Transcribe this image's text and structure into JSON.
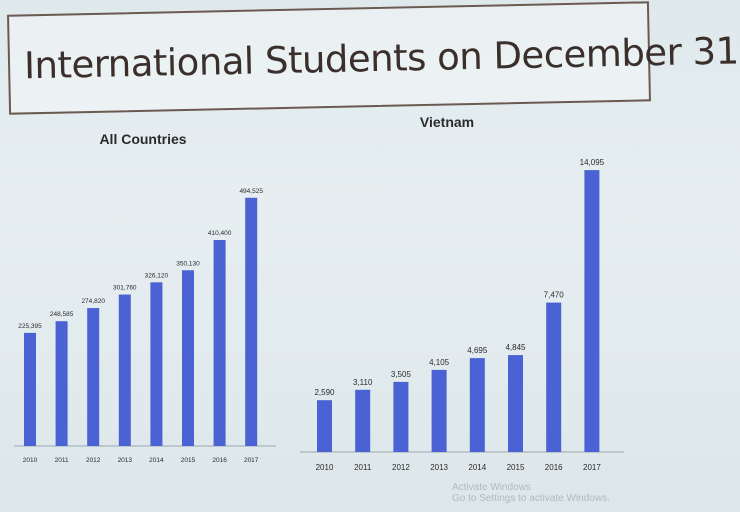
{
  "slide": {
    "title": "International Students on December 31"
  },
  "watermark": {
    "line1": "Activate Windows",
    "line2": "Go to Settings to activate Windows."
  },
  "colors": {
    "bar": "#4a62d4",
    "text": "#2b2b2b",
    "axis": "#9aa6b0"
  },
  "chart_data": [
    {
      "type": "bar",
      "title": "All Countries",
      "categories": [
        "2010",
        "2011",
        "2012",
        "2013",
        "2014",
        "2015",
        "2016",
        "2017"
      ],
      "values": [
        225395,
        248585,
        274820,
        301760,
        326120,
        350130,
        410400,
        494525
      ],
      "value_labels": [
        "225,395",
        "248,585",
        "274,820",
        "301,760",
        "326,120",
        "350,130",
        "410,400",
        "494,525"
      ],
      "xlabel": "",
      "ylabel": "",
      "ylim": [
        0,
        520000
      ],
      "grid": false,
      "legend": "none"
    },
    {
      "type": "bar",
      "title": "Vietnam",
      "categories": [
        "2010",
        "2011",
        "2012",
        "2013",
        "2014",
        "2015",
        "2016",
        "2017"
      ],
      "values": [
        2590,
        3110,
        3505,
        4105,
        4695,
        4845,
        7470,
        14095
      ],
      "value_labels": [
        "2,590",
        "3,110",
        "3,505",
        "4,105",
        "4,695",
        "4,845",
        "7,470",
        "14,095"
      ],
      "xlabel": "",
      "ylabel": "",
      "ylim": [
        0,
        14600
      ],
      "grid": false,
      "legend": "none"
    }
  ]
}
